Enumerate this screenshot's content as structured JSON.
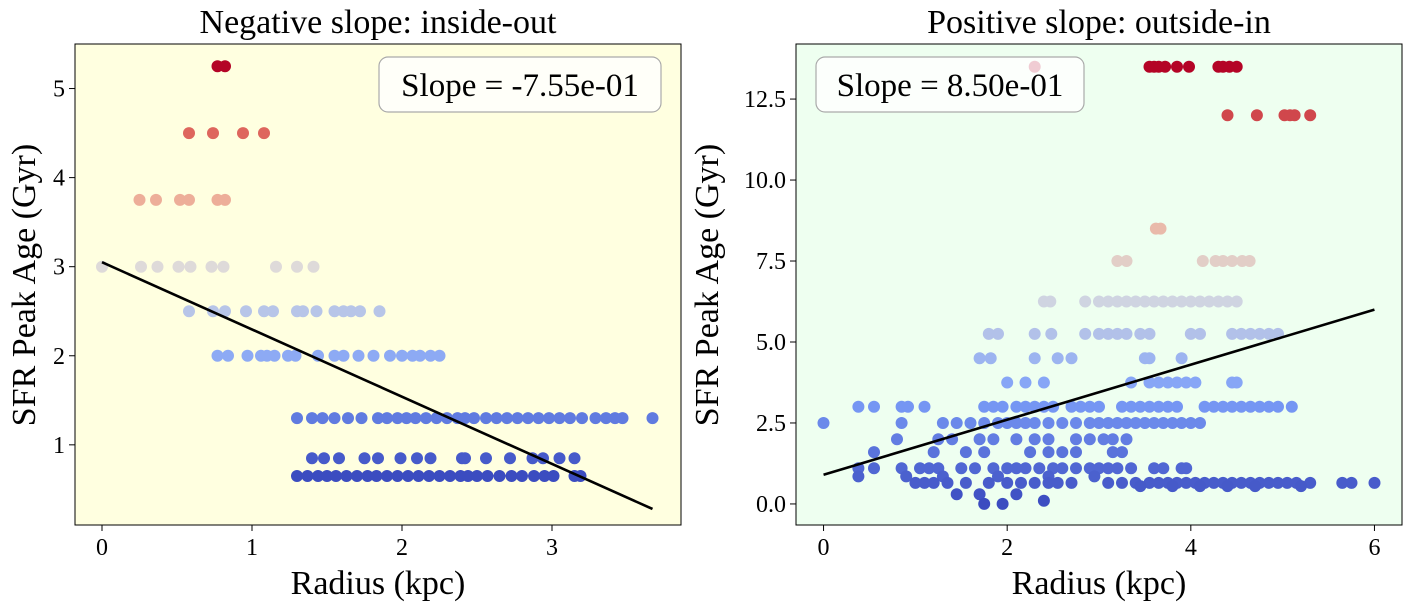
{
  "chart_data": [
    {
      "type": "scatter",
      "title": "Negative slope: inside-out",
      "xlabel": "Radius (kpc)",
      "ylabel": "SFR Peak Age (Gyr)",
      "xlim": [
        -0.18,
        3.86
      ],
      "ylim": [
        0.1,
        5.5
      ],
      "xticks": [
        0,
        1,
        2,
        3
      ],
      "yticks": [
        1,
        2,
        3,
        4,
        5
      ],
      "ytick_labels": [
        "1",
        "2",
        "3",
        "4",
        "5"
      ],
      "background": "#ffffe0",
      "slope_label": "Slope = -7.55e-01",
      "slope_box_position": "top-right",
      "fit_line": {
        "x": [
          0,
          3.67
        ],
        "y": [
          3.05,
          0.28
        ],
        "color": "#000000"
      },
      "color_scale": {
        "min": 0.65,
        "max": 5.25
      },
      "rows": [
        {
          "y": 5.25,
          "x": [
            0.77,
            0.82
          ]
        },
        {
          "y": 4.5,
          "x": [
            0.58,
            0.74,
            0.94,
            1.08
          ]
        },
        {
          "y": 3.75,
          "x": [
            0.25,
            0.36,
            0.52,
            0.58,
            0.77,
            0.82
          ]
        },
        {
          "y": 3.0,
          "x": [
            0.0,
            0.26,
            0.37,
            0.51,
            0.59,
            0.73,
            0.81,
            1.16,
            1.3,
            1.41
          ]
        },
        {
          "y": 2.5,
          "x": [
            0.58,
            0.74,
            0.82,
            0.96,
            1.08,
            1.14,
            1.3,
            1.34,
            1.43,
            1.55,
            1.61,
            1.66,
            1.72,
            1.85
          ]
        },
        {
          "y": 2.0,
          "x": [
            0.77,
            0.84,
            0.97,
            1.06,
            1.1,
            1.15,
            1.24,
            1.29,
            1.44,
            1.55,
            1.61,
            1.71,
            1.81,
            1.92,
            2.0,
            2.07,
            2.12,
            2.19,
            2.25
          ]
        },
        {
          "y": 1.3,
          "x": [
            1.3,
            1.4,
            1.47,
            1.55,
            1.64,
            1.73,
            1.84,
            1.9,
            1.97,
            2.03,
            2.09,
            2.16,
            2.23,
            2.3,
            2.37,
            2.42,
            2.48,
            2.56,
            2.63,
            2.7,
            2.77,
            2.84,
            2.91,
            2.98,
            3.05,
            3.12,
            3.2,
            3.29,
            3.36,
            3.42,
            3.47,
            3.67
          ]
        },
        {
          "y": 0.85,
          "x": [
            1.4,
            1.48,
            1.58,
            1.75,
            1.84,
            1.99,
            2.1,
            2.19,
            2.4,
            2.42,
            2.56,
            2.72,
            2.87,
            2.94,
            3.05,
            3.15
          ]
        },
        {
          "y": 0.65,
          "x": [
            1.3,
            1.37,
            1.44,
            1.5,
            1.56,
            1.63,
            1.7,
            1.77,
            1.83,
            1.9,
            1.97,
            2.04,
            2.11,
            2.18,
            2.25,
            2.32,
            2.39,
            2.44,
            2.5,
            2.57,
            2.65,
            2.73,
            2.8,
            2.88,
            2.95,
            3.01,
            3.15,
            3.19
          ]
        }
      ]
    },
    {
      "type": "scatter",
      "title": "Positive slope: outside-in",
      "xlabel": "Radius (kpc)",
      "ylabel": "SFR Peak Age (Gyr)",
      "xlim": [
        -0.3,
        6.3
      ],
      "ylim": [
        -0.65,
        14.2
      ],
      "xticks": [
        0,
        2,
        4,
        6
      ],
      "yticks": [
        0.0,
        2.5,
        5.0,
        7.5,
        10.0,
        12.5
      ],
      "ytick_labels": [
        "0.0",
        "2.5",
        "5.0",
        "7.5",
        "10.0",
        "12.5"
      ],
      "background": "#eefff0",
      "slope_label": "Slope = 8.50e-01",
      "slope_box_position": "top-left",
      "fit_line": {
        "x": [
          0,
          6
        ],
        "y": [
          0.9,
          6.0
        ],
        "color": "#000000"
      },
      "color_scale": {
        "min": 0.0,
        "max": 13.5
      },
      "rows": [
        {
          "y": 13.5,
          "x": [
            2.3,
            3.55,
            3.6,
            3.65,
            3.72,
            3.85,
            3.98,
            4.3,
            4.35,
            4.42,
            4.5
          ]
        },
        {
          "y": 12.0,
          "x": [
            4.4,
            4.72,
            5.02,
            5.08,
            5.13,
            5.3
          ]
        },
        {
          "y": 8.5,
          "x": [
            3.62,
            3.67
          ]
        },
        {
          "y": 7.5,
          "x": [
            3.2,
            3.3,
            4.13,
            4.27,
            4.35,
            4.45,
            4.56,
            4.64
          ]
        },
        {
          "y": 6.25,
          "x": [
            2.4,
            2.47,
            2.85,
            3.0,
            3.1,
            3.2,
            3.3,
            3.4,
            3.5,
            3.6,
            3.7,
            3.8,
            3.9,
            4.0,
            4.1,
            4.2,
            4.3,
            4.4,
            4.5
          ]
        },
        {
          "y": 5.25,
          "x": [
            1.8,
            1.9,
            2.3,
            2.48,
            2.85,
            3.0,
            3.1,
            3.2,
            3.3,
            3.45,
            3.55,
            4.0,
            4.1,
            4.45,
            4.55,
            4.65,
            4.75,
            4.85,
            4.95
          ]
        },
        {
          "y": 4.5,
          "x": [
            1.7,
            1.82,
            2.3,
            2.55,
            2.7,
            3.5,
            3.55,
            3.9
          ]
        },
        {
          "y": 3.75,
          "x": [
            2.0,
            2.2,
            2.4,
            3.35,
            3.55,
            3.65,
            3.75,
            3.85,
            3.95,
            4.05,
            4.45,
            4.5
          ]
        },
        {
          "y": 3.0,
          "x": [
            0.38,
            0.55,
            0.85,
            0.92,
            1.1,
            1.75,
            1.85,
            1.95,
            2.1,
            2.2,
            2.3,
            2.4,
            2.5,
            2.7,
            2.8,
            2.9,
            3.0,
            3.25,
            3.35,
            3.45,
            3.55,
            3.65,
            3.75,
            3.85,
            4.15,
            4.25,
            4.35,
            4.45,
            4.55,
            4.65,
            4.75,
            4.85,
            4.95,
            5.1
          ]
        },
        {
          "y": 2.5,
          "x": [
            0.0,
            0.85,
            1.3,
            1.45,
            1.6,
            1.75,
            1.9,
            2.0,
            2.1,
            2.2,
            2.3,
            2.45,
            2.6,
            2.75,
            2.9,
            3.0,
            3.1,
            3.2,
            3.3,
            3.4,
            3.5,
            3.6,
            3.7,
            3.8,
            3.9,
            4.0,
            4.1
          ]
        },
        {
          "y": 2.0,
          "x": [
            0.8,
            1.25,
            1.4,
            1.7,
            1.85,
            2.1,
            2.3,
            2.45,
            2.75,
            2.9,
            3.05,
            3.15,
            3.3
          ]
        },
        {
          "y": 1.6,
          "x": [
            0.55,
            1.2,
            1.55,
            1.75,
            2.25,
            2.45,
            2.6,
            2.75,
            3.15,
            3.25
          ]
        },
        {
          "y": 1.1,
          "x": [
            0.38,
            0.55,
            0.85,
            1.05,
            1.15,
            1.25,
            1.5,
            1.65,
            1.85,
            2.0,
            2.1,
            2.2,
            2.35,
            2.5,
            2.6,
            2.75,
            2.9,
            3.0,
            3.1,
            3.2,
            3.35,
            3.6,
            3.7,
            3.9,
            3.95
          ]
        },
        {
          "y": 0.85,
          "x": [
            0.38,
            0.9,
            1.3,
            1.9,
            2.45,
            2.95
          ]
        },
        {
          "y": 0.65,
          "x": [
            1.0,
            1.1,
            1.2,
            1.35,
            1.55,
            1.8,
            2.0,
            2.15,
            2.3,
            2.45,
            2.55,
            2.7,
            3.1,
            3.25,
            3.4,
            3.55,
            3.65,
            3.75,
            3.85,
            3.95,
            4.05,
            4.15,
            4.25,
            4.35,
            4.45,
            4.55,
            4.65,
            4.75,
            4.85,
            4.95,
            5.05,
            5.15,
            5.3,
            5.65,
            5.75,
            6.0
          ]
        },
        {
          "y": 0.55,
          "x": [
            3.45,
            3.8,
            4.1,
            4.4,
            4.7,
            5.2
          ]
        },
        {
          "y": 0.3,
          "x": [
            1.45,
            1.7,
            2.1
          ]
        },
        {
          "y": 0.1,
          "x": [
            2.4
          ]
        },
        {
          "y": 0.0,
          "x": [
            1.75,
            1.95
          ]
        }
      ]
    }
  ]
}
